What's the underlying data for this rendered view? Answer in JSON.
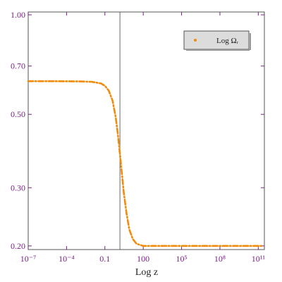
{
  "chart_data": {
    "type": "line",
    "title": "",
    "xlabel": "Log z",
    "ylabel": "",
    "x_scale": "log",
    "y_scale": "log",
    "xlim": [
      1e-07,
      300000000000.0
    ],
    "ylim": [
      0.195,
      1.02
    ],
    "x_ticks": [
      {
        "value": 1e-07,
        "label": "10⁻⁷"
      },
      {
        "value": 0.0001,
        "label": "10⁻⁴"
      },
      {
        "value": 0.1,
        "label": "0.1"
      },
      {
        "value": 100,
        "label": "100"
      },
      {
        "value": 100000.0,
        "label": "10⁵"
      },
      {
        "value": 100000000.0,
        "label": "10⁸"
      },
      {
        "value": 100000000000.0,
        "label": "10¹¹"
      }
    ],
    "y_ticks": [
      {
        "value": 0.2,
        "label": "0.20"
      },
      {
        "value": 0.3,
        "label": "0.30"
      },
      {
        "value": 0.5,
        "label": "0.50"
      },
      {
        "value": 0.7,
        "label": "0.70"
      },
      {
        "value": 1.0,
        "label": "1.00"
      }
    ],
    "vertical_line_x": 1.5,
    "grid": false,
    "legend_position": "top-right",
    "series": [
      {
        "name": "Log Ωᵣ",
        "color": "#f28a0a",
        "style": "dash-dot",
        "points": [
          [
            1e-07,
            0.63
          ],
          [
            1e-05,
            0.63
          ],
          [
            0.001,
            0.629
          ],
          [
            0.01,
            0.627
          ],
          [
            0.05,
            0.62
          ],
          [
            0.1,
            0.61
          ],
          [
            0.2,
            0.59
          ],
          [
            0.4,
            0.55
          ],
          [
            0.7,
            0.49
          ],
          [
            1.0,
            0.44
          ],
          [
            1.5,
            0.38
          ],
          [
            2.0,
            0.34
          ],
          [
            3.0,
            0.29
          ],
          [
            5.0,
            0.25
          ],
          [
            8.0,
            0.225
          ],
          [
            15,
            0.21
          ],
          [
            30,
            0.203
          ],
          [
            100,
            0.2
          ],
          [
            1000.0,
            0.2
          ],
          [
            100000.0,
            0.2
          ],
          [
            100000000.0,
            0.2
          ],
          [
            200000000000.0,
            0.2
          ]
        ]
      }
    ]
  }
}
